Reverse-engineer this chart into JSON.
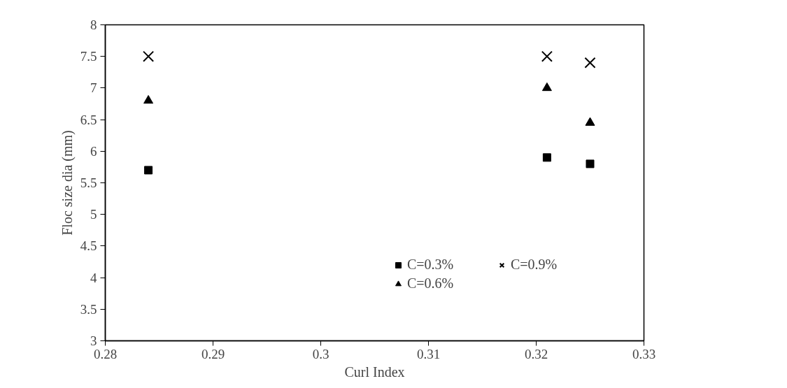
{
  "chart_data": {
    "type": "scatter",
    "xlabel": "Curl Index",
    "ylabel": "Floc size dia (mm)",
    "x": [
      0.284,
      0.321,
      0.325
    ],
    "series": [
      {
        "name": "C=0.3%",
        "color": "#000000",
        "marker": "square",
        "values": [
          5.7,
          5.9,
          5.8
        ]
      },
      {
        "name": "C=0.6%",
        "color": "#000000",
        "marker": "triangle",
        "values": [
          6.8,
          7.0,
          6.45
        ]
      },
      {
        "name": "C=0.9%",
        "color": "#000000",
        "marker": "cross",
        "values": [
          7.5,
          7.5,
          7.4
        ]
      }
    ],
    "xlim": [
      0.28,
      0.33
    ],
    "xticks": [
      0.28,
      0.29,
      0.3,
      0.31,
      0.32,
      0.33
    ],
    "ylim": [
      3,
      8
    ],
    "yticks": [
      3,
      3.5,
      4,
      4.5,
      5,
      5.5,
      6,
      6.5,
      7,
      7.5,
      8
    ],
    "grid": false,
    "legend": "bottom right"
  }
}
